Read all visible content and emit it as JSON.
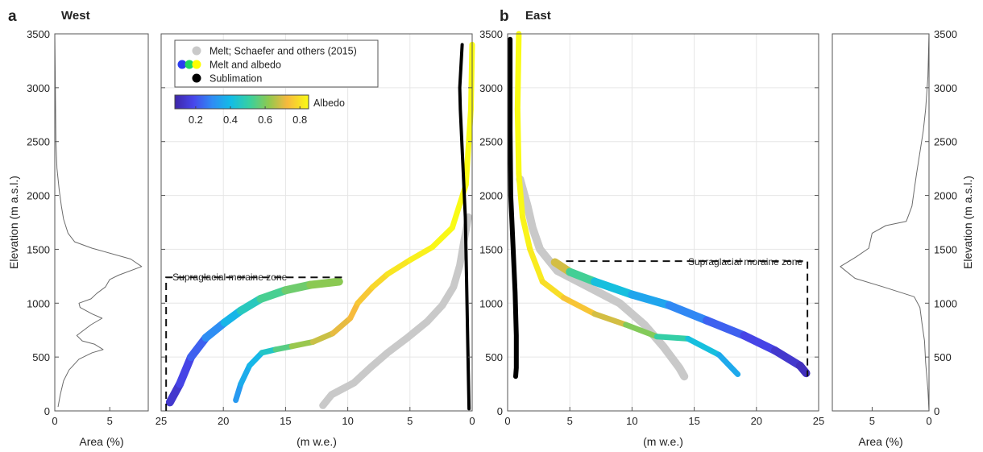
{
  "chart_data": [
    {
      "panel": "a-area",
      "type": "line",
      "panel_label": "a",
      "title": "West",
      "xlabel": "Area (%)",
      "ylabel": "Elevation (m a.s.l.)",
      "xlim": [
        0,
        8.5
      ],
      "x_reversed": false,
      "ylim": [
        0,
        3500
      ],
      "xticks": [
        0,
        5
      ],
      "yticks": [
        0,
        500,
        1000,
        1500,
        2000,
        2500,
        3000,
        3500
      ],
      "grid": false,
      "series": [
        {
          "color": "#6b6b6b",
          "points": [
            [
              0.3,
              40
            ],
            [
              0.5,
              150
            ],
            [
              0.8,
              280
            ],
            [
              1.3,
              380
            ],
            [
              2.2,
              480
            ],
            [
              3.4,
              540
            ],
            [
              4.4,
              570
            ],
            [
              3.6,
              620
            ],
            [
              2.5,
              650
            ],
            [
              2.0,
              700
            ],
            [
              3.3,
              800
            ],
            [
              4.3,
              860
            ],
            [
              3.4,
              900
            ],
            [
              2.3,
              960
            ],
            [
              2.2,
              1000
            ],
            [
              3.3,
              1040
            ],
            [
              3.8,
              1090
            ],
            [
              4.6,
              1150
            ],
            [
              5.0,
              1220
            ],
            [
              5.8,
              1260
            ],
            [
              7.9,
              1340
            ],
            [
              6.9,
              1410
            ],
            [
              3.4,
              1510
            ],
            [
              1.8,
              1570
            ],
            [
              1.2,
              1650
            ],
            [
              0.8,
              1780
            ],
            [
              0.6,
              1900
            ],
            [
              0.4,
              2050
            ],
            [
              0.2,
              2250
            ],
            [
              0.1,
              2500
            ],
            [
              0.05,
              3000
            ],
            [
              0.0,
              3500
            ]
          ]
        }
      ]
    },
    {
      "panel": "a",
      "type": "scatter",
      "panel_label": "a",
      "xlabel": "(m w.e.)",
      "ylabel": "",
      "xlim": [
        0,
        25
      ],
      "x_reversed": true,
      "ylim": [
        0,
        3500
      ],
      "xticks": [
        0,
        5,
        10,
        15,
        20,
        25
      ],
      "yticks": [
        0,
        500,
        1000,
        1500,
        2000,
        2500,
        3000,
        3500
      ],
      "grid": true,
      "legend": {
        "position": "top-left",
        "entries": [
          {
            "label": "Melt; Schaefer and others (2015)",
            "colors": [
              "#c9c9c9"
            ]
          },
          {
            "label": "Melt and albedo",
            "colors": [
              "#2a3cf0",
              "#1ed760",
              "#ffff00"
            ]
          },
          {
            "label": "Sublimation",
            "colors": [
              "#000000"
            ]
          }
        ]
      },
      "colorbar": {
        "label": "Albedo",
        "range": [
          0.08,
          0.85
        ],
        "ticks": [
          "0.2",
          "0.4",
          "0.6",
          "0.8"
        ]
      },
      "annotation": {
        "text": "Supraglacial moraine zone",
        "box_x": [
          24.6,
          10.3
        ],
        "box_y": [
          0,
          1240
        ]
      },
      "series": [
        {
          "name": "Melt; Schaefer and others (2015)",
          "color": "#c9c9c9",
          "width": 9,
          "points": [
            [
              12,
              50
            ],
            [
              11.3,
              150
            ],
            [
              9.5,
              260
            ],
            [
              8.2,
              400
            ],
            [
              6.8,
              540
            ],
            [
              5.2,
              680
            ],
            [
              3.6,
              830
            ],
            [
              2.4,
              980
            ],
            [
              1.5,
              1150
            ],
            [
              1.0,
              1350
            ],
            [
              0.7,
              1550
            ],
            [
              0.3,
              1800
            ]
          ]
        },
        {
          "name": "Melt and albedo",
          "width": 10,
          "points": [
            [
              24.3,
              80,
              0.12
            ],
            [
              23.5,
              250,
              0.16
            ],
            [
              22.6,
              500,
              0.2
            ],
            [
              21.4,
              680,
              0.26
            ],
            [
              19.9,
              820,
              0.34
            ],
            [
              18.6,
              930,
              0.43
            ],
            [
              17.0,
              1040,
              0.5
            ],
            [
              15.0,
              1120,
              0.56
            ],
            [
              13.0,
              1170,
              0.6
            ],
            [
              10.7,
              1200,
              0.63
            ]
          ]
        },
        {
          "name": "Melt and albedo",
          "width": 7,
          "points": [
            [
              19.0,
              100,
              0.3
            ],
            [
              18.6,
              250,
              0.35
            ],
            [
              17.9,
              420,
              0.38
            ],
            [
              16.9,
              540,
              0.4
            ],
            [
              15.8,
              570,
              0.5
            ],
            [
              14.5,
              600,
              0.6
            ],
            [
              12.8,
              640,
              0.66
            ],
            [
              11.2,
              720,
              0.7
            ],
            [
              9.8,
              860,
              0.72
            ],
            [
              9.2,
              1000,
              0.74
            ],
            [
              8.0,
              1150,
              0.77
            ],
            [
              6.8,
              1270,
              0.8
            ],
            [
              5.0,
              1400,
              0.82
            ],
            [
              3.2,
              1520,
              0.84
            ],
            [
              1.6,
              1700,
              0.85
            ],
            [
              0.5,
              2100,
              0.85
            ],
            [
              0.1,
              2800,
              0.85
            ],
            [
              0.0,
              3400,
              0.85
            ]
          ]
        },
        {
          "name": "Sublimation",
          "color": "#000000",
          "width": 4,
          "points": [
            [
              0.25,
              20
            ],
            [
              0.35,
              600
            ],
            [
              0.45,
              1200
            ],
            [
              0.55,
              1800
            ],
            [
              0.75,
              2300
            ],
            [
              0.95,
              2800
            ],
            [
              1.0,
              3000
            ],
            [
              0.9,
              3200
            ],
            [
              0.8,
              3400
            ]
          ]
        }
      ]
    },
    {
      "panel": "b",
      "type": "scatter",
      "panel_label": "b",
      "title": "East",
      "xlabel": "(m w.e.)",
      "ylabel": "",
      "xlim": [
        0,
        25
      ],
      "x_reversed": false,
      "ylim": [
        0,
        3500
      ],
      "xticks": [
        0,
        5,
        10,
        15,
        20,
        25
      ],
      "yticks": [
        0,
        500,
        1000,
        1500,
        2000,
        2500,
        3000,
        3500
      ],
      "grid": true,
      "annotation": {
        "text": "Supraglacial moraine zone",
        "box_x": [
          4.7,
          24.1
        ],
        "box_y": [
          320,
          1390
        ]
      },
      "series": [
        {
          "name": "Melt; Schaefer and others (2015)",
          "color": "#c9c9c9",
          "width": 10,
          "points": [
            [
              1.0,
              2150
            ],
            [
              1.6,
              1900
            ],
            [
              2.0,
              1700
            ],
            [
              2.6,
              1500
            ],
            [
              4.0,
              1300
            ],
            [
              6.5,
              1150
            ],
            [
              9.0,
              1000
            ],
            [
              11.0,
              800
            ],
            [
              12.5,
              600
            ],
            [
              13.8,
              400
            ],
            [
              14.2,
              320
            ]
          ]
        },
        {
          "name": "Melt and albedo",
          "width": 10,
          "points": [
            [
              3.8,
              1380,
              0.78
            ],
            [
              5.0,
              1290,
              0.6
            ],
            [
              7.0,
              1200,
              0.45
            ],
            [
              10.0,
              1080,
              0.38
            ],
            [
              13.0,
              980,
              0.32
            ],
            [
              16.0,
              840,
              0.26
            ],
            [
              19.0,
              700,
              0.2
            ],
            [
              21.5,
              560,
              0.16
            ],
            [
              23.5,
              420,
              0.12
            ],
            [
              24.0,
              350,
              0.1
            ]
          ]
        },
        {
          "name": "Melt and albedo",
          "width": 7,
          "points": [
            [
              0.9,
              3500,
              0.85
            ],
            [
              0.8,
              2800,
              0.85
            ],
            [
              0.9,
              2200,
              0.85
            ],
            [
              1.2,
              1800,
              0.84
            ],
            [
              1.8,
              1500,
              0.83
            ],
            [
              2.8,
              1200,
              0.81
            ],
            [
              4.5,
              1050,
              0.78
            ],
            [
              7.0,
              900,
              0.72
            ],
            [
              9.5,
              800,
              0.66
            ],
            [
              12.0,
              690,
              0.55
            ],
            [
              14.5,
              670,
              0.45
            ],
            [
              17.0,
              520,
              0.38
            ],
            [
              18.5,
              340,
              0.34
            ]
          ]
        },
        {
          "name": "Sublimation",
          "color": "#000000",
          "width": 6,
          "points": [
            [
              0.2,
              3450
            ],
            [
              0.2,
              2600
            ],
            [
              0.25,
              2000
            ],
            [
              0.45,
              1500
            ],
            [
              0.6,
              1100
            ],
            [
              0.7,
              700
            ],
            [
              0.7,
              400
            ],
            [
              0.65,
              320
            ]
          ]
        }
      ]
    },
    {
      "panel": "b-area",
      "type": "line",
      "panel_label": "b",
      "xlabel": "Area (%)",
      "ylabel": "Elevation (m a.s.l.)",
      "xlim": [
        0,
        8.5
      ],
      "x_reversed": true,
      "ylim": [
        0,
        3500
      ],
      "xticks": [
        0,
        5
      ],
      "yticks": [
        0,
        500,
        1000,
        1500,
        2000,
        2500,
        3000,
        3500
      ],
      "grid": false,
      "series": [
        {
          "color": "#6b6b6b",
          "points": [
            [
              0.0,
              0
            ],
            [
              0.1,
              200
            ],
            [
              0.3,
              450
            ],
            [
              0.4,
              650
            ],
            [
              0.6,
              800
            ],
            [
              0.8,
              960
            ],
            [
              1.3,
              1060
            ],
            [
              4.0,
              1150
            ],
            [
              6.5,
              1230
            ],
            [
              7.8,
              1340
            ],
            [
              6.4,
              1430
            ],
            [
              5.3,
              1510
            ],
            [
              5.0,
              1650
            ],
            [
              3.8,
              1720
            ],
            [
              2.0,
              1760
            ],
            [
              1.5,
              1900
            ],
            [
              1.3,
              2050
            ],
            [
              1.1,
              2200
            ],
            [
              0.8,
              2400
            ],
            [
              0.5,
              2600
            ],
            [
              0.3,
              2800
            ],
            [
              0.1,
              3100
            ],
            [
              0.0,
              3500
            ]
          ]
        }
      ]
    }
  ]
}
